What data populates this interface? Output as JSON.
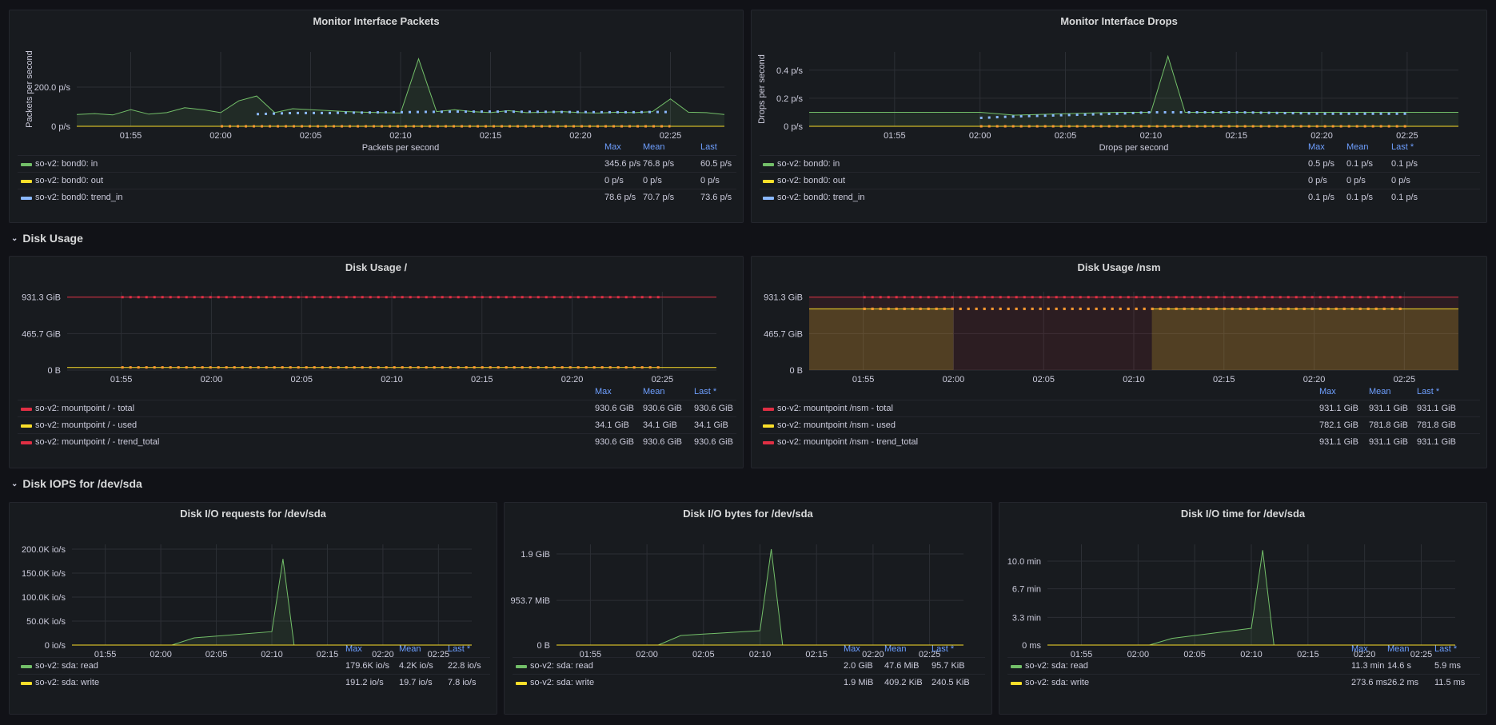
{
  "colors": {
    "green": "#73bf69",
    "yellow": "#fade2a",
    "blue": "#8ab8ff",
    "red": "#e02f44",
    "orange": "#ff9830"
  },
  "rows": [
    {
      "title": "Disk Usage"
    },
    {
      "title": "Disk IOPS for /dev/sda"
    }
  ],
  "panels": [
    {
      "title": "Monitor Interface Packets",
      "ylabel": "Packets per second",
      "xlabel": "Packets per second",
      "yticks": [
        "0 p/s",
        "200.0 p/s"
      ],
      "xticks": [
        "01:55",
        "02:00",
        "02:05",
        "02:10",
        "02:15",
        "02:20",
        "02:25"
      ],
      "legend_cols": [
        "Max",
        "Mean",
        "Last"
      ],
      "series": [
        {
          "name": "so-v2: bond0: in",
          "color": "green",
          "max": "345.6 p/s",
          "mean": "76.8 p/s",
          "last": "60.5 p/s"
        },
        {
          "name": "so-v2: bond0: out",
          "color": "yellow",
          "max": "0 p/s",
          "mean": "0 p/s",
          "last": "0 p/s"
        },
        {
          "name": "so-v2: bond0: trend_in",
          "color": "blue",
          "max": "78.6 p/s",
          "mean": "70.7 p/s",
          "last": "73.6 p/s"
        }
      ]
    },
    {
      "title": "Monitor Interface Drops",
      "ylabel": "Drops per second",
      "xlabel": "Drops per second",
      "yticks": [
        "0 p/s",
        "0.2 p/s",
        "0.4 p/s"
      ],
      "xticks": [
        "01:55",
        "02:00",
        "02:05",
        "02:10",
        "02:15",
        "02:20",
        "02:25"
      ],
      "legend_cols": [
        "Max",
        "Mean",
        "Last *"
      ],
      "series": [
        {
          "name": "so-v2: bond0: in",
          "color": "green",
          "max": "0.5 p/s",
          "mean": "0.1 p/s",
          "last": "0.1 p/s"
        },
        {
          "name": "so-v2: bond0: out",
          "color": "yellow",
          "max": "0 p/s",
          "mean": "0 p/s",
          "last": "0 p/s"
        },
        {
          "name": "so-v2: bond0: trend_in",
          "color": "blue",
          "max": "0.1 p/s",
          "mean": "0.1 p/s",
          "last": "0.1 p/s"
        }
      ]
    },
    {
      "title": "Disk Usage /",
      "ylabel": "",
      "xlabel": "",
      "yticks": [
        "0 B",
        "465.7 GiB",
        "931.3 GiB"
      ],
      "xticks": [
        "01:55",
        "02:00",
        "02:05",
        "02:10",
        "02:15",
        "02:20",
        "02:25"
      ],
      "legend_cols": [
        "Max",
        "Mean",
        "Last *"
      ],
      "series": [
        {
          "name": "so-v2: mountpoint / - total",
          "color": "red",
          "max": "930.6 GiB",
          "mean": "930.6 GiB",
          "last": "930.6 GiB"
        },
        {
          "name": "so-v2: mountpoint / - used",
          "color": "yellow",
          "max": "34.1 GiB",
          "mean": "34.1 GiB",
          "last": "34.1 GiB"
        },
        {
          "name": "so-v2: mountpoint / - trend_total",
          "color": "red",
          "max": "930.6 GiB",
          "mean": "930.6 GiB",
          "last": "930.6 GiB"
        }
      ]
    },
    {
      "title": "Disk Usage /nsm",
      "ylabel": "",
      "xlabel": "",
      "yticks": [
        "0 B",
        "465.7 GiB",
        "931.3 GiB"
      ],
      "xticks": [
        "01:55",
        "02:00",
        "02:05",
        "02:10",
        "02:15",
        "02:20",
        "02:25"
      ],
      "legend_cols": [
        "Max",
        "Mean",
        "Last *"
      ],
      "series": [
        {
          "name": "so-v2: mountpoint /nsm - total",
          "color": "red",
          "max": "931.1 GiB",
          "mean": "931.1 GiB",
          "last": "931.1 GiB"
        },
        {
          "name": "so-v2: mountpoint /nsm - used",
          "color": "yellow",
          "max": "782.1 GiB",
          "mean": "781.8 GiB",
          "last": "781.8 GiB"
        },
        {
          "name": "so-v2: mountpoint /nsm - trend_total",
          "color": "red",
          "max": "931.1 GiB",
          "mean": "931.1 GiB",
          "last": "931.1 GiB"
        }
      ]
    },
    {
      "title": "Disk I/O requests for /dev/sda",
      "ylabel": "",
      "xlabel": "",
      "yticks": [
        "0 io/s",
        "50.0K io/s",
        "100.0K io/s",
        "150.0K io/s",
        "200.0K io/s"
      ],
      "xticks": [
        "01:55",
        "02:00",
        "02:05",
        "02:10",
        "02:15",
        "02:20",
        "02:25"
      ],
      "legend_cols": [
        "Max",
        "Mean",
        "Last *"
      ],
      "series": [
        {
          "name": "so-v2: sda: read",
          "color": "green",
          "max": "179.6K io/s",
          "mean": "4.2K io/s",
          "last": "22.8 io/s"
        },
        {
          "name": "so-v2: sda: write",
          "color": "yellow",
          "max": "191.2 io/s",
          "mean": "19.7 io/s",
          "last": "7.8 io/s"
        }
      ]
    },
    {
      "title": "Disk I/O bytes for /dev/sda",
      "ylabel": "",
      "xlabel": "",
      "yticks": [
        "0 B",
        "953.7 MiB",
        "1.9 GiB"
      ],
      "xticks": [
        "01:55",
        "02:00",
        "02:05",
        "02:10",
        "02:15",
        "02:20",
        "02:25"
      ],
      "legend_cols": [
        "Max",
        "Mean",
        "Last *"
      ],
      "series": [
        {
          "name": "so-v2: sda: read",
          "color": "green",
          "max": "2.0 GiB",
          "mean": "47.6 MiB",
          "last": "95.7 KiB"
        },
        {
          "name": "so-v2: sda: write",
          "color": "yellow",
          "max": "1.9 MiB",
          "mean": "409.2 KiB",
          "last": "240.5 KiB"
        }
      ]
    },
    {
      "title": "Disk I/O time for /dev/sda",
      "ylabel": "",
      "xlabel": "",
      "yticks": [
        "0 ms",
        "3.3 min",
        "6.7 min",
        "10.0 min"
      ],
      "xticks": [
        "01:55",
        "02:00",
        "02:05",
        "02:10",
        "02:15",
        "02:20",
        "02:25"
      ],
      "legend_cols": [
        "Max",
        "Mean",
        "Last *"
      ],
      "series": [
        {
          "name": "so-v2: sda: read",
          "color": "green",
          "max": "11.3 min",
          "mean": "14.6 s",
          "last": "5.9 ms"
        },
        {
          "name": "so-v2: sda: write",
          "color": "yellow",
          "max": "273.6 ms",
          "mean": "26.2 ms",
          "last": "11.5 ms"
        }
      ]
    }
  ],
  "chart_data": [
    {
      "type": "line",
      "title": "Monitor Interface Packets",
      "ylabel": "Packets per second",
      "xlabel": "Packets per second",
      "ylim": [
        0,
        380
      ],
      "x": [
        "01:52",
        "01:53",
        "01:54",
        "01:55",
        "01:56",
        "01:57",
        "01:58",
        "01:59",
        "02:00",
        "02:01",
        "02:02",
        "02:03",
        "02:04",
        "02:05",
        "02:06",
        "02:07",
        "02:08",
        "02:09",
        "02:10",
        "02:11",
        "02:12",
        "02:13",
        "02:14",
        "02:15",
        "02:16",
        "02:17",
        "02:18",
        "02:19",
        "02:20",
        "02:21",
        "02:22",
        "02:23",
        "02:24",
        "02:25",
        "02:26",
        "02:27",
        "02:28"
      ],
      "series": [
        {
          "name": "so-v2: bond0: in",
          "color": "green",
          "values": [
            60,
            65,
            58,
            85,
            62,
            70,
            95,
            85,
            70,
            130,
            155,
            70,
            90,
            85,
            80,
            75,
            72,
            70,
            68,
            345,
            75,
            85,
            75,
            70,
            80,
            70,
            72,
            75,
            70,
            68,
            72,
            70,
            75,
            140,
            72,
            70,
            60
          ]
        },
        {
          "name": "so-v2: bond0: out",
          "color": "yellow",
          "values": [
            0,
            0,
            0,
            0,
            0,
            0,
            0,
            0,
            0,
            0,
            0,
            0,
            0,
            0,
            0,
            0,
            0,
            0,
            0,
            0,
            0,
            0,
            0,
            0,
            0,
            0,
            0,
            0,
            0,
            0,
            0,
            0,
            0,
            0,
            0,
            0,
            0
          ]
        },
        {
          "name": "so-v2: bond0: trend_in",
          "color": "blue",
          "values": [
            null,
            null,
            null,
            null,
            null,
            null,
            null,
            null,
            null,
            null,
            62,
            65,
            68,
            68,
            68,
            70,
            70,
            72,
            72,
            73,
            74,
            75,
            75,
            75,
            75,
            74,
            74,
            73,
            73,
            72,
            72,
            72,
            73,
            73,
            null,
            null,
            null
          ]
        }
      ]
    },
    {
      "type": "line",
      "title": "Monitor Interface Drops",
      "ylabel": "Drops per second",
      "xlabel": "Drops per second",
      "ylim": [
        0,
        0.53
      ],
      "x": [
        "01:50",
        "01:55",
        "02:00",
        "02:02",
        "02:05",
        "02:08",
        "02:10",
        "02:11",
        "02:12",
        "02:15",
        "02:20",
        "02:25",
        "02:28"
      ],
      "series": [
        {
          "name": "so-v2: bond0: in",
          "color": "green",
          "values": [
            0.1,
            0.1,
            0.1,
            0.08,
            0.09,
            0.1,
            0.1,
            0.5,
            0.1,
            0.1,
            0.1,
            0.1,
            0.1
          ]
        },
        {
          "name": "so-v2: bond0: out",
          "color": "yellow",
          "values": [
            0,
            0,
            0,
            0,
            0,
            0,
            0,
            0,
            0,
            0,
            0,
            0,
            0
          ]
        },
        {
          "name": "so-v2: bond0: trend_in",
          "color": "blue",
          "values": [
            null,
            null,
            0.06,
            0.07,
            0.08,
            0.09,
            0.1,
            0.1,
            0.1,
            0.1,
            0.09,
            0.09,
            null
          ]
        }
      ]
    },
    {
      "type": "line",
      "title": "Disk Usage /",
      "ylim": [
        0,
        1000
      ],
      "x": [
        "01:52",
        "01:55",
        "02:00",
        "02:05",
        "02:10",
        "02:15",
        "02:20",
        "02:25",
        "02:28"
      ],
      "series": [
        {
          "name": "so-v2: mountpoint / - total",
          "color": "red",
          "values": [
            930.6,
            930.6,
            930.6,
            930.6,
            930.6,
            930.6,
            930.6,
            930.6,
            930.6
          ]
        },
        {
          "name": "so-v2: mountpoint / - used",
          "color": "yellow",
          "values": [
            34.1,
            34.1,
            34.1,
            34.1,
            34.1,
            34.1,
            34.1,
            34.1,
            34.1
          ]
        },
        {
          "name": "so-v2: mountpoint / - trend_total",
          "color": "red",
          "values": [
            null,
            930.6,
            930.6,
            930.6,
            930.6,
            930.6,
            930.6,
            930.6,
            null
          ]
        }
      ]
    },
    {
      "type": "area",
      "title": "Disk Usage /nsm",
      "ylim": [
        0,
        1000
      ],
      "x": [
        "01:52",
        "01:55",
        "02:00",
        "02:01",
        "02:10",
        "02:11",
        "02:15",
        "02:20",
        "02:25",
        "02:28"
      ],
      "series": [
        {
          "name": "so-v2: mountpoint /nsm - total",
          "color": "red",
          "values": [
            931.1,
            931.1,
            931.1,
            931.1,
            931.1,
            931.1,
            931.1,
            931.1,
            931.1,
            931.1
          ]
        },
        {
          "name": "so-v2: mountpoint /nsm - used",
          "color": "yellow",
          "values": [
            782.1,
            782.1,
            782.1,
            null,
            null,
            782.1,
            782.1,
            782.1,
            782.1,
            782.1
          ]
        },
        {
          "name": "so-v2: mountpoint /nsm - trend_total",
          "color": "red",
          "values": [
            null,
            931.1,
            931.1,
            931.1,
            931.1,
            931.1,
            931.1,
            931.1,
            931.1,
            null
          ]
        }
      ]
    },
    {
      "type": "area",
      "title": "Disk I/O requests for /dev/sda",
      "ylim": [
        0,
        210000
      ],
      "x": [
        "01:52",
        "01:55",
        "02:00",
        "02:01",
        "02:03",
        "02:10",
        "02:11",
        "02:12",
        "02:15",
        "02:20",
        "02:25",
        "02:28"
      ],
      "series": [
        {
          "name": "so-v2: sda: read",
          "color": "green",
          "values": [
            0,
            0,
            0,
            0,
            15000,
            28000,
            179600,
            0,
            0,
            0,
            0,
            0
          ]
        },
        {
          "name": "so-v2: sda: write",
          "color": "yellow",
          "values": [
            0,
            0,
            0,
            0,
            0,
            0,
            0,
            0,
            0,
            0,
            0,
            0
          ]
        }
      ]
    },
    {
      "type": "area",
      "title": "Disk I/O bytes for /dev/sda",
      "ylim": [
        0,
        2.1
      ],
      "x": [
        "01:52",
        "01:55",
        "02:00",
        "02:01",
        "02:03",
        "02:10",
        "02:11",
        "02:12",
        "02:15",
        "02:20",
        "02:25",
        "02:28"
      ],
      "series": [
        {
          "name": "so-v2: sda: read",
          "color": "green",
          "values": [
            0,
            0,
            0,
            0,
            0.2,
            0.3,
            2.0,
            0,
            0,
            0,
            0,
            0
          ]
        },
        {
          "name": "so-v2: sda: write",
          "color": "yellow",
          "values": [
            0,
            0,
            0,
            0,
            0,
            0,
            0,
            0,
            0,
            0,
            0,
            0
          ]
        }
      ]
    },
    {
      "type": "area",
      "title": "Disk I/O time for /dev/sda",
      "ylim": [
        0,
        12
      ],
      "x": [
        "01:52",
        "01:55",
        "02:00",
        "02:01",
        "02:03",
        "02:10",
        "02:11",
        "02:12",
        "02:15",
        "02:20",
        "02:25",
        "02:28"
      ],
      "series": [
        {
          "name": "so-v2: sda: read",
          "color": "green",
          "values": [
            0,
            0,
            0,
            0,
            0.8,
            2.0,
            11.3,
            0,
            0,
            0,
            0,
            0
          ]
        },
        {
          "name": "so-v2: sda: write",
          "color": "yellow",
          "values": [
            0,
            0,
            0,
            0,
            0,
            0,
            0,
            0,
            0,
            0,
            0,
            0
          ]
        }
      ]
    }
  ]
}
